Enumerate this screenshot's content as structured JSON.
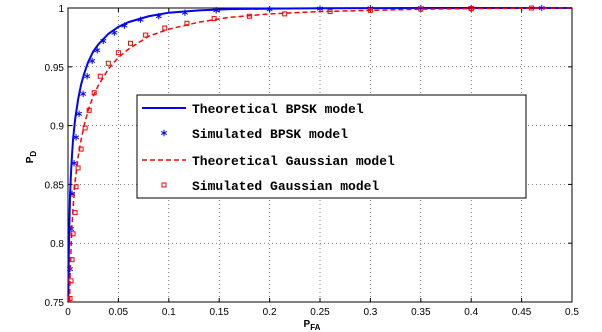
{
  "chart_data": {
    "type": "line",
    "xlabel_main": "P",
    "xlabel_sub": "FA",
    "ylabel_main": "P",
    "ylabel_sub": "D",
    "xlim": [
      0,
      0.5
    ],
    "ylim": [
      0.75,
      1
    ],
    "x_ticks": [
      0,
      0.05,
      0.1,
      0.15,
      0.2,
      0.25,
      0.3,
      0.35,
      0.4,
      0.45,
      0.5
    ],
    "x_tick_labels": [
      "0",
      "0.05",
      "0.1",
      "0.15",
      "0.2",
      "0.25",
      "0.3",
      "0.35",
      "0.4",
      "0.45",
      "0.5"
    ],
    "y_ticks": [
      0.75,
      0.8,
      0.85,
      0.9,
      0.95,
      1
    ],
    "y_tick_labels": [
      "0.75",
      "0.8",
      "0.85",
      "0.9",
      "0.95",
      "1"
    ],
    "grid": true,
    "legend_position": "center",
    "series": [
      {
        "name": "Theoretical BPSK model",
        "style": "solid",
        "color": "#0000ff",
        "x": [
          0.0003,
          0.0006,
          0.001,
          0.0015,
          0.002,
          0.003,
          0.004,
          0.005,
          0.007,
          0.01,
          0.013,
          0.016,
          0.02,
          0.025,
          0.03,
          0.04,
          0.05,
          0.06,
          0.08,
          0.1,
          0.13,
          0.16,
          0.2,
          0.25,
          0.3,
          0.35,
          0.4,
          0.45,
          0.5
        ],
        "y": [
          0.75,
          0.78,
          0.8,
          0.82,
          0.84,
          0.86,
          0.875,
          0.888,
          0.905,
          0.922,
          0.935,
          0.944,
          0.954,
          0.963,
          0.969,
          0.978,
          0.984,
          0.988,
          0.993,
          0.996,
          0.998,
          0.999,
          0.9995,
          0.9998,
          0.9999,
          1.0,
          1.0,
          1.0,
          1.0
        ]
      },
      {
        "name": "Simulated BPSK model",
        "style": "marker-star",
        "color": "#0000ff",
        "x": [
          0.002,
          0.003,
          0.004,
          0.006,
          0.008,
          0.011,
          0.015,
          0.019,
          0.024,
          0.029,
          0.035,
          0.046,
          0.056,
          0.072,
          0.09,
          0.116,
          0.147,
          0.2,
          0.25,
          0.3,
          0.35,
          0.4,
          0.47
        ],
        "y": [
          0.778,
          0.812,
          0.842,
          0.868,
          0.89,
          0.91,
          0.927,
          0.942,
          0.955,
          0.964,
          0.972,
          0.979,
          0.985,
          0.99,
          0.993,
          0.996,
          0.998,
          0.999,
          0.9995,
          0.9998,
          1.0,
          1.0,
          1.0
        ]
      },
      {
        "name": "Theoretical Gaussian model",
        "style": "dashed",
        "color": "#ff0000",
        "x": [
          0.0015,
          0.002,
          0.003,
          0.004,
          0.005,
          0.007,
          0.01,
          0.013,
          0.016,
          0.02,
          0.025,
          0.03,
          0.04,
          0.05,
          0.06,
          0.08,
          0.1,
          0.13,
          0.16,
          0.2,
          0.25,
          0.3,
          0.35,
          0.4,
          0.45,
          0.5
        ],
        "y": [
          0.75,
          0.77,
          0.795,
          0.815,
          0.83,
          0.852,
          0.873,
          0.888,
          0.9,
          0.913,
          0.925,
          0.934,
          0.948,
          0.958,
          0.965,
          0.976,
          0.982,
          0.988,
          0.992,
          0.995,
          0.997,
          0.998,
          0.999,
          0.9995,
          0.9998,
          1.0
        ]
      },
      {
        "name": "Simulated Gaussian model",
        "style": "marker-square",
        "color": "#ff0000",
        "x": [
          0.002,
          0.003,
          0.004,
          0.005,
          0.007,
          0.008,
          0.01,
          0.013,
          0.017,
          0.021,
          0.026,
          0.032,
          0.04,
          0.05,
          0.062,
          0.077,
          0.096,
          0.118,
          0.145,
          0.18,
          0.215,
          0.26,
          0.3,
          0.35,
          0.4,
          0.46
        ],
        "y": [
          0.753,
          0.768,
          0.786,
          0.808,
          0.826,
          0.848,
          0.864,
          0.88,
          0.898,
          0.913,
          0.928,
          0.942,
          0.953,
          0.962,
          0.97,
          0.977,
          0.983,
          0.987,
          0.991,
          0.993,
          0.995,
          0.997,
          0.998,
          0.999,
          0.9995,
          1.0
        ]
      }
    ]
  }
}
